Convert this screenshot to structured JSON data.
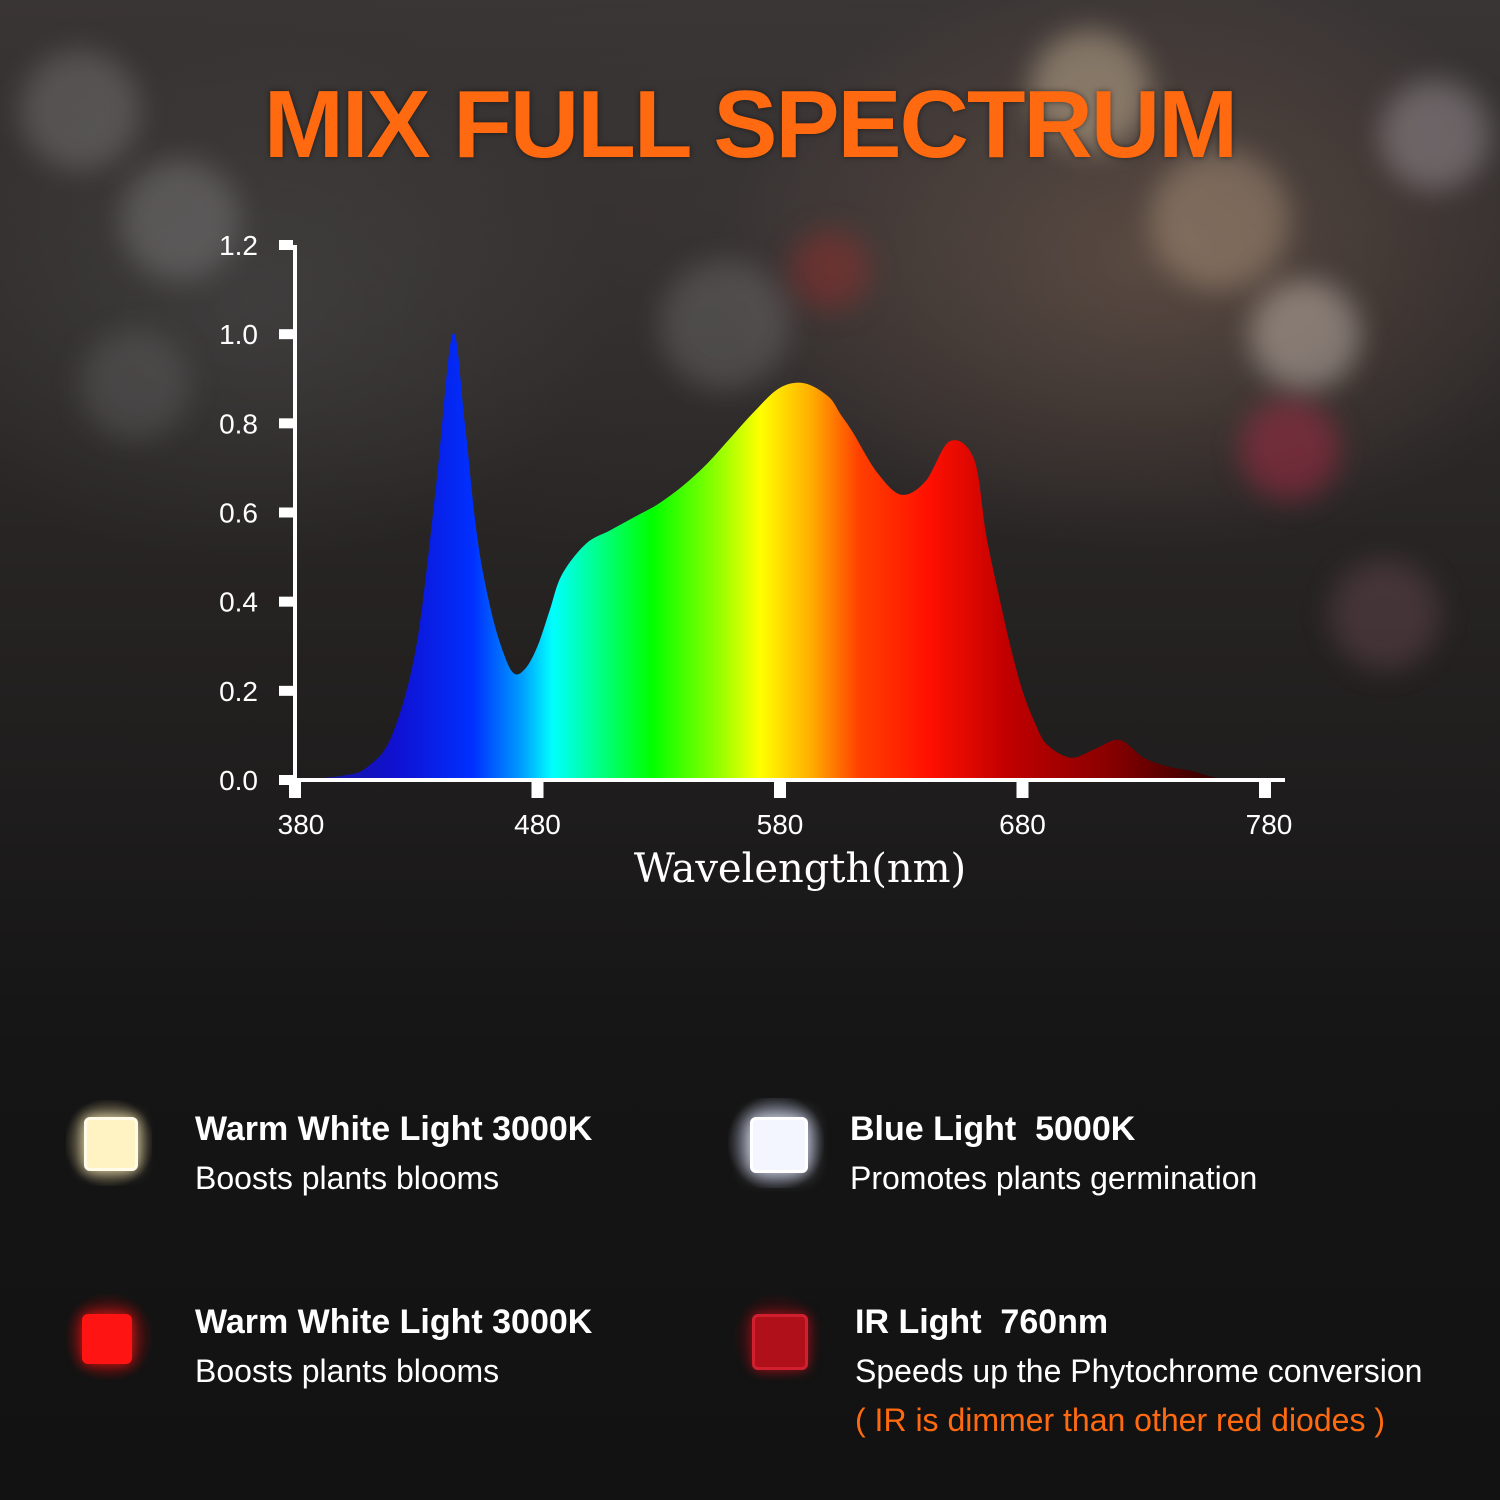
{
  "title": "MIX FULL SPECTRUM",
  "colors": {
    "title": "#ff6a10",
    "note": "#ff6a10",
    "axis": "#ffffff",
    "warm_white_led": "#fff3c4",
    "blue_led": "#f4f6ff",
    "red_led": "#ff1414",
    "ir_led": "#b0101a"
  },
  "chart_data": {
    "type": "area",
    "xlabel": "Wavelength(nm)",
    "ylabel": "",
    "xlim": [
      380,
      780
    ],
    "ylim": [
      0,
      1.2
    ],
    "x_ticks": [
      "380",
      "480",
      "580",
      "680",
      "780"
    ],
    "y_ticks": [
      "0.0",
      "0.2",
      "0.4",
      "0.6",
      "0.8",
      "1.0",
      "1.2"
    ],
    "grid": false,
    "fill": "visible-spectrum gradient",
    "series": [
      {
        "x": [
          380,
          400,
          410,
          420,
          430,
          438,
          445,
          450,
          455,
          460,
          465,
          470,
          475,
          480,
          485,
          490,
          500,
          510,
          520,
          530,
          540,
          550,
          560,
          570,
          580,
          590,
          600,
          605,
          610,
          620,
          630,
          640,
          650,
          660,
          665,
          670,
          675,
          680,
          685,
          690,
          700,
          710,
          720,
          730,
          740,
          750,
          760,
          770,
          780
        ],
        "y": [
          0.0,
          0.01,
          0.03,
          0.1,
          0.3,
          0.65,
          1.0,
          0.8,
          0.55,
          0.4,
          0.3,
          0.24,
          0.25,
          0.3,
          0.38,
          0.46,
          0.53,
          0.56,
          0.59,
          0.62,
          0.66,
          0.71,
          0.77,
          0.83,
          0.88,
          0.89,
          0.86,
          0.82,
          0.78,
          0.69,
          0.64,
          0.67,
          0.76,
          0.72,
          0.55,
          0.42,
          0.3,
          0.2,
          0.13,
          0.08,
          0.05,
          0.07,
          0.09,
          0.05,
          0.03,
          0.02,
          0.005,
          0.002,
          0.0
        ]
      }
    ]
  },
  "legend": [
    {
      "title": "Warm White Light 3000K",
      "desc": "Boosts plants blooms",
      "led": "warm-white"
    },
    {
      "title": "Blue Light  5000K",
      "desc": "Promotes plants germination",
      "led": "blue"
    },
    {
      "title": "Warm White Light 3000K",
      "desc": "Boosts plants blooms",
      "led": "red"
    },
    {
      "title": "IR Light  760nm",
      "desc": "Speeds up the Phytochrome conversion",
      "note": "( IR is dimmer than other red diodes )",
      "led": "ir"
    }
  ]
}
